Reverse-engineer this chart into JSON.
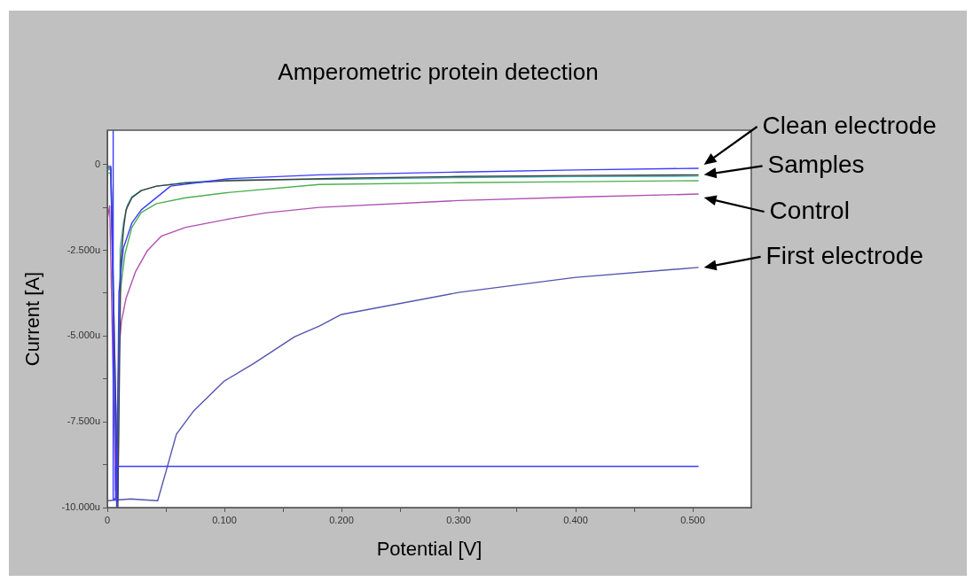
{
  "chart_data": {
    "type": "line",
    "title": "Amperometric protein detection",
    "xlabel": "Potential [V]",
    "ylabel": "Current [A]",
    "xlim": [
      0,
      0.55
    ],
    "xticks": [
      {
        "value": 0,
        "label": "0"
      },
      {
        "value": 0.05,
        "label": null
      },
      {
        "value": 0.1,
        "label": "0.100"
      },
      {
        "value": 0.15,
        "label": null
      },
      {
        "value": 0.2,
        "label": "0.200"
      },
      {
        "value": 0.25,
        "label": null
      },
      {
        "value": 0.3,
        "label": "0.300"
      },
      {
        "value": 0.35,
        "label": null
      },
      {
        "value": 0.4,
        "label": "0.400"
      },
      {
        "value": 0.45,
        "label": null
      },
      {
        "value": 0.5,
        "label": "0.500"
      }
    ],
    "ylim": [
      -10,
      1
    ],
    "yticks": [
      {
        "value": -10,
        "label": "-10.000u"
      },
      {
        "value": -8.75,
        "label": null
      },
      {
        "value": -7.5,
        "label": "-7.500u"
      },
      {
        "value": -6.25,
        "label": null
      },
      {
        "value": -5,
        "label": "-5.000u"
      },
      {
        "value": -3.75,
        "label": null
      },
      {
        "value": -2.5,
        "label": "-2.500u"
      },
      {
        "value": -1.25,
        "label": null
      },
      {
        "value": 0,
        "label": "0"
      }
    ],
    "marker": "none",
    "series": [
      {
        "name": "First electrode",
        "color": "#5454b0",
        "x": [
          0,
          0.02,
          0.043,
          0.052,
          0.059,
          0.074,
          0.1,
          0.125,
          0.16,
          0.181,
          0.2,
          0.3,
          0.4,
          0.505
        ],
        "values": [
          -9.8,
          -9.75,
          -9.8,
          -8.72,
          -7.86,
          -7.17,
          -6.31,
          -5.8,
          -5.02,
          -4.71,
          -4.37,
          -3.73,
          -3.29,
          -3.0
        ]
      },
      {
        "name": "Control",
        "color": "#b050b0",
        "x": [
          0,
          0.002,
          0.007,
          0.0099,
          0.012,
          0.016,
          0.024,
          0.034,
          0.046,
          0.067,
          0.105,
          0.135,
          0.181,
          0.3,
          0.4,
          0.505
        ],
        "values": [
          -1.6,
          -1.2,
          -9.5,
          -5.45,
          -4.58,
          -3.9,
          -3.13,
          -2.52,
          -2.09,
          -1.83,
          -1.58,
          -1.41,
          -1.25,
          -1.05,
          -0.95,
          -0.86
        ]
      },
      {
        "color": "#4caf50",
        "x": [
          0,
          0.003,
          0.008,
          0.011,
          0.015,
          0.021,
          0.029,
          0.042,
          0.067,
          0.105,
          0.181,
          0.3,
          0.4,
          0.505
        ],
        "values": [
          -0.25,
          -0.25,
          -9.8,
          -3.73,
          -2.61,
          -1.83,
          -1.4,
          -1.14,
          -0.97,
          -0.81,
          -0.58,
          -0.53,
          -0.5,
          -0.47
        ]
      },
      {
        "color": "#40b0b0",
        "x": [
          0,
          0.003,
          0.009,
          0.011,
          0.014,
          0.017,
          0.021,
          0.029,
          0.042,
          0.067,
          0.105,
          0.2,
          0.3,
          0.4,
          0.505
        ],
        "values": [
          -0.15,
          -0.15,
          -9.8,
          -2.44,
          -1.66,
          -1.2,
          -0.94,
          -0.76,
          -0.63,
          -0.52,
          -0.45,
          -0.43,
          -0.38,
          -0.35,
          -0.34
        ]
      },
      {
        "name": "Samples",
        "color": "#404040",
        "x": [
          0,
          0.003,
          0.009,
          0.0115,
          0.014,
          0.016,
          0.021,
          0.029,
          0.042,
          0.067,
          0.105,
          0.2,
          0.3,
          0.4,
          0.505
        ],
        "values": [
          -0.1,
          -0.1,
          -10,
          -2.87,
          -1.83,
          -1.32,
          -0.97,
          -0.76,
          -0.63,
          -0.54,
          -0.47,
          -0.4,
          -0.35,
          -0.32,
          -0.3
        ]
      },
      {
        "name": "Clean electrode",
        "color": "#3c3cff",
        "x": [
          0,
          0.003,
          0.008,
          0.0099,
          0.0137,
          0.021,
          0.029,
          0.054,
          0.105,
          0.181,
          0.3,
          0.4,
          0.505
        ],
        "values": [
          -0.05,
          -0.05,
          -10,
          -3.73,
          -2.44,
          -1.7,
          -1.32,
          -0.63,
          -0.41,
          -0.3,
          -0.22,
          -0.16,
          -0.11
        ]
      },
      {
        "color": "#3c3cff",
        "x": [
          0.005,
          0.005,
          0.007,
          0.007,
          0.505
        ],
        "values": [
          1.0,
          -9.75,
          -9.75,
          -8.8,
          -8.8
        ]
      }
    ]
  }
}
